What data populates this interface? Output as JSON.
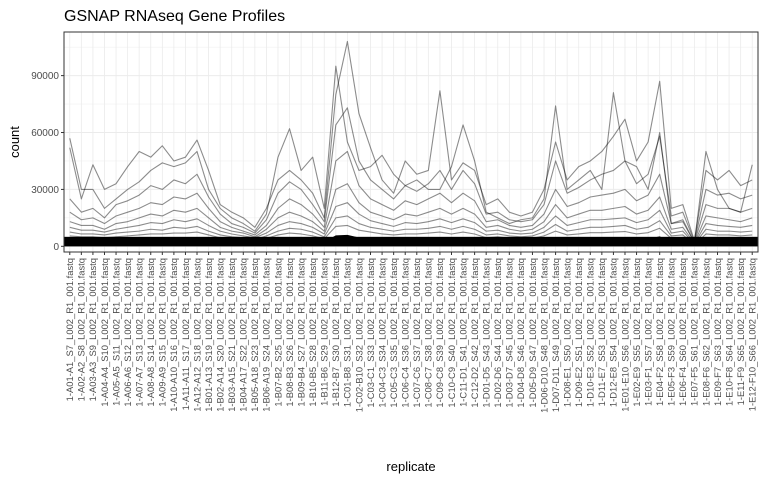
{
  "chart_data": {
    "type": "line",
    "title": "GSNAP RNAseq Gene Profiles",
    "xlabel": "replicate",
    "ylabel": "count",
    "ylim": [
      -3000,
      113000
    ],
    "yticks": [
      0,
      30000,
      60000,
      90000
    ],
    "ytick_labels": [
      "0",
      "30000",
      "60000",
      "90000"
    ],
    "grid": true,
    "line_color": "#000000",
    "line_opacity": 0.45,
    "categories": [
      "1-A01-A1_S7_L002_R1_001.fastq",
      "1-A02-A2_S8_L002_R1_001.fastq",
      "1-A03-A3_S9_L002_R1_001.fastq",
      "1-A04-A4_S10_L002_R1_001.fastq",
      "1-A05-A5_S11_L002_R1_001.fastq",
      "1-A06-A6_S12_L002_R1_001.fastq",
      "1-A07-A7_S13_L002_R1_001.fastq",
      "1-A08-A8_S14_L002_R1_001.fastq",
      "1-A09-A9_S15_L002_R1_001.fastq",
      "1-A10-A10_S16_L002_R1_001.fastq",
      "1-A11-A11_S17_L002_R1_001.fastq",
      "1-A12-A12_S18_L002_R1_001.fastq",
      "1-B01-A13_S19_L002_R1_001.fastq",
      "1-B02-A14_S20_L002_R1_001.fastq",
      "1-B03-A15_S21_L002_R1_001.fastq",
      "1-B04-A17_S22_L002_R1_001.fastq",
      "1-B05-A18_S23_L002_R1_001.fastq",
      "1-B06-A19_S24_L002_R1_001.fastq",
      "1-B07-B2_S25_L002_R1_001.fastq",
      "1-B08-B3_S26_L002_R1_001.fastq",
      "1-B09-B4_S27_L002_R1_001.fastq",
      "1-B10-B5_S28_L002_R1_001.fastq",
      "1-B11-B6_S29_L002_R1_001.fastq",
      "1-B12-B7_S30_L002_R1_001.fastq",
      "1-C01-B8_S31_L002_R1_001.fastq",
      "1-C02-B10_S32_L002_R1_001.fastq",
      "1-C03-C1_S33_L002_R1_001.fastq",
      "1-C04-C3_S34_L002_R1_001.fastq",
      "1-C05-C3_S35_L002_R1_001.fastq",
      "1-C06-C4_S36_L002_R1_001.fastq",
      "1-C07-C6_S37_L002_R1_001.fastq",
      "1-C08-C7_S38_L002_R1_001.fastq",
      "1-C09-C8_S39_L002_R1_001.fastq",
      "1-C10-C9_S40_L002_R1_001.fastq",
      "1-C11-D1_S41_L002_R1_001.fastq",
      "1-C12-D2_S42_L002_R1_001.fastq",
      "1-D01-D5_S43_L002_R1_001.fastq",
      "1-D02-D6_S44_L002_R1_001.fastq",
      "1-D03-D7_S45_L002_R1_001.fastq",
      "1-D04-D8_S46_L002_R1_001.fastq",
      "1-D05-D9_S47_L002_R1_001.fastq",
      "1-D06-D10_S48_L002_R1_001.fastq",
      "1-D07-D11_S49_L002_R1_001.fastq",
      "1-D08-E1_S50_L002_R1_001.fastq",
      "1-D09-E2_S51_L002_R1_001.fastq",
      "1-D10-E3_S52_L002_R1_001.fastq",
      "1-D11-E7_S53_L002_R1_001.fastq",
      "1-D12-E8_S54_L002_R1_001.fastq",
      "1-E01-E10_S56_L002_R1_001.fastq",
      "1-E02-E9_S55_L002_R1_001.fastq",
      "1-E03-F1_S57_L002_R1_001.fastq",
      "1-E04-F2_S58_L002_R1_001.fastq",
      "1-E05-F3_S59_L002_R1_001.fastq",
      "1-E06-F4_S60_L002_R1_001.fastq",
      "1-E07-F5_S61_L002_R1_001.fastq",
      "1-E08-F6_S62_L002_R1_001.fastq",
      "1-E09-F7_S63_L002_R1_001.fastq",
      "1-E10-F8_S64_L002_R1_001.fastq",
      "1-E11-F9_S65_L002_R1_001.fastq",
      "1-E12-F10_S66_L002_R1_001.fastq"
    ],
    "series": [
      {
        "values": [
          57000,
          30000,
          30000,
          20000,
          25000,
          30000,
          34000,
          40000,
          44000,
          42000,
          44000,
          50000,
          30000,
          20000,
          15000,
          12000,
          8000,
          17000,
          47000,
          62000,
          40000,
          47000,
          20000,
          95000,
          55000,
          40000,
          42000,
          48000,
          38000,
          32000,
          35000,
          30000,
          30000,
          42000,
          64000,
          45000,
          18000,
          15000,
          12000,
          14000,
          15000,
          25000,
          74000,
          30000,
          35000,
          40000,
          30000,
          81000,
          45000,
          42000,
          30000,
          60000,
          12000,
          14000,
          2000,
          50000,
          30000,
          20000,
          18000,
          43000
        ]
      },
      {
        "values": [
          52000,
          25000,
          43000,
          30000,
          33000,
          42000,
          50000,
          47000,
          53000,
          45000,
          47000,
          56000,
          40000,
          22000,
          18000,
          15000,
          10000,
          20000,
          35000,
          40000,
          35000,
          28000,
          15000,
          80000,
          108000,
          70000,
          52000,
          35000,
          28000,
          45000,
          38000,
          40000,
          82000,
          35000,
          44000,
          40000,
          22000,
          25000,
          18000,
          16000,
          18000,
          30000,
          55000,
          35000,
          42000,
          45000,
          50000,
          58000,
          67000,
          45000,
          55000,
          87000,
          20000,
          22000,
          3000,
          40000,
          35000,
          40000,
          32000,
          35000
        ]
      },
      {
        "values": [
          25000,
          18000,
          20000,
          15000,
          22000,
          24000,
          27000,
          32000,
          30000,
          35000,
          33000,
          38000,
          26000,
          17000,
          12000,
          10000,
          7000,
          14000,
          28000,
          34000,
          30000,
          22000,
          13000,
          64000,
          73000,
          45000,
          35000,
          30000,
          25000,
          32000,
          29000,
          33000,
          40000,
          30000,
          40000,
          33000,
          17000,
          18000,
          14000,
          13000,
          14000,
          22000,
          45000,
          28000,
          31000,
          35000,
          38000,
          40000,
          45000,
          33000,
          38000,
          58000,
          16000,
          18000,
          2500,
          30000,
          27000,
          28000,
          25000,
          27000
        ]
      },
      {
        "values": [
          18000,
          14000,
          15000,
          12000,
          16000,
          18000,
          20000,
          23000,
          22000,
          26000,
          25000,
          28000,
          20000,
          13000,
          10000,
          8000,
          6000,
          11000,
          20000,
          25000,
          22000,
          17000,
          10000,
          45000,
          50000,
          32000,
          25000,
          22000,
          19000,
          24000,
          22000,
          25000,
          28000,
          23000,
          28000,
          24000,
          13000,
          14000,
          11000,
          10000,
          11000,
          17000,
          30000,
          21000,
          23000,
          26000,
          27000,
          28000,
          30000,
          24000,
          27000,
          38000,
          12000,
          13000,
          2000,
          22000,
          20000,
          20000,
          18000,
          20000
        ]
      },
      {
        "values": [
          13000,
          11000,
          11000,
          9000,
          12000,
          13000,
          15000,
          17000,
          16000,
          19000,
          18000,
          20000,
          15000,
          10000,
          8000,
          7000,
          5000,
          9000,
          15000,
          18000,
          16000,
          13000,
          8000,
          30000,
          33000,
          23000,
          18000,
          16000,
          14000,
          17000,
          16000,
          18000,
          20000,
          17000,
          20000,
          17000,
          10000,
          11000,
          9000,
          8000,
          9000,
          13000,
          22000,
          15000,
          17000,
          19000,
          19000,
          20000,
          21000,
          17000,
          19000,
          26000,
          9000,
          10000,
          1500,
          16000,
          15000,
          14000,
          13000,
          15000
        ]
      },
      {
        "values": [
          10000,
          8500,
          8500,
          7500,
          9000,
          10000,
          11000,
          12500,
          12000,
          14000,
          13000,
          14500,
          11000,
          8000,
          6500,
          5500,
          4500,
          7000,
          11000,
          13000,
          12000,
          10000,
          6500,
          21000,
          23000,
          17000,
          13500,
          12000,
          10500,
          12500,
          12000,
          13000,
          14500,
          12500,
          14500,
          12500,
          8000,
          8500,
          7000,
          6500,
          7000,
          10000,
          16000,
          11000,
          12500,
          14000,
          14000,
          14500,
          15000,
          12500,
          14000,
          19000,
          7000,
          8000,
          1200,
          12000,
          11000,
          10500,
          10000,
          11000
        ]
      },
      {
        "values": [
          7500,
          6500,
          6500,
          6000,
          7000,
          7500,
          8000,
          9000,
          8500,
          10000,
          9500,
          10500,
          8000,
          6000,
          5000,
          4500,
          3500,
          5500,
          8000,
          9500,
          9000,
          7500,
          5000,
          15000,
          16000,
          12000,
          10000,
          9000,
          8000,
          9000,
          9000,
          9500,
          10500,
          9000,
          10500,
          9000,
          6000,
          6500,
          5500,
          5000,
          5500,
          7500,
          11500,
          8000,
          9000,
          10000,
          10000,
          10500,
          11000,
          9000,
          10000,
          13500,
          5500,
          6000,
          1000,
          9000,
          8000,
          8000,
          7500,
          8000
        ]
      },
      {
        "values": [
          5500,
          5000,
          5000,
          4500,
          5000,
          5500,
          6000,
          6500,
          6500,
          7000,
          7000,
          7500,
          6000,
          4500,
          4000,
          3500,
          3000,
          4200,
          6000,
          7000,
          6500,
          5500,
          4000,
          10500,
          11000,
          8500,
          7500,
          6500,
          6000,
          6500,
          6500,
          7000,
          7500,
          6500,
          7500,
          6500,
          4500,
          5000,
          4200,
          4000,
          4200,
          5500,
          8000,
          6000,
          6500,
          7200,
          7200,
          7500,
          7800,
          6500,
          7200,
          9500,
          4200,
          4500,
          800,
          6500,
          6000,
          6000,
          5500,
          6000
        ]
      }
    ]
  }
}
